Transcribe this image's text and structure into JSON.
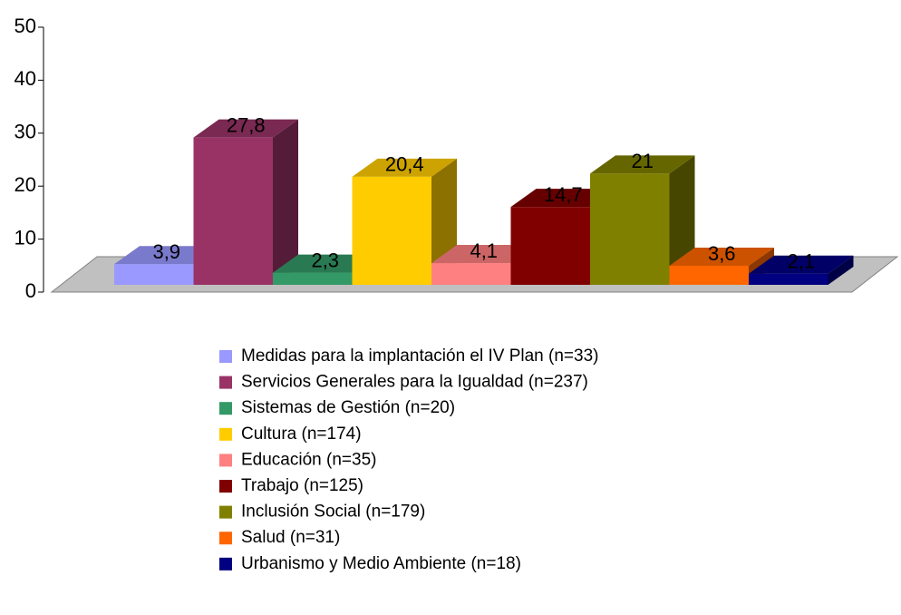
{
  "chart_data": {
    "type": "bar3d",
    "ylim": [
      0,
      50
    ],
    "yticks": [
      0,
      10,
      20,
      30,
      40,
      50
    ],
    "series": [
      {
        "name": "Medidas para la implantación el IV Plan (n=33)",
        "color": "#9999ff",
        "values": [
          3.9
        ],
        "value_labels": [
          "3,9"
        ]
      },
      {
        "name": "Servicios Generales para la Igualdad (n=237)",
        "color": "#993366",
        "values": [
          27.8
        ],
        "value_labels": [
          "27,8"
        ]
      },
      {
        "name": "Sistemas de Gestión (n=20)",
        "color": "#339966",
        "values": [
          2.3
        ],
        "value_labels": [
          "2,3"
        ]
      },
      {
        "name": "Cultura (n=174)",
        "color": "#ffcc00",
        "values": [
          20.4
        ],
        "value_labels": [
          "20,4"
        ]
      },
      {
        "name": "Educación (n=35)",
        "color": "#ff8080",
        "values": [
          4.1
        ],
        "value_labels": [
          "4,1"
        ]
      },
      {
        "name": "Trabajo (n=125)",
        "color": "#800000",
        "values": [
          14.7
        ],
        "value_labels": [
          "14,7"
        ]
      },
      {
        "name": "Inclusión Social (n=179)",
        "color": "#808000",
        "values": [
          21
        ],
        "value_labels": [
          "21"
        ]
      },
      {
        "name": "Salud (n=31)",
        "color": "#ff6600",
        "values": [
          3.6
        ],
        "value_labels": [
          "3,6"
        ]
      },
      {
        "name": "Urbanismo y Medio Ambiente (n=18)",
        "color": "#000080",
        "values": [
          2.1
        ],
        "value_labels": [
          "2,1"
        ]
      }
    ]
  }
}
